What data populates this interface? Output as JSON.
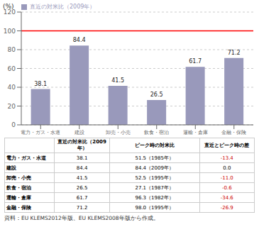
{
  "chart_data": {
    "type": "bar",
    "categories": [
      "電力・ガス・水道",
      "建設",
      "卸売・小売",
      "飲食・宿泊",
      "運輸・倉庫",
      "金融・保険"
    ],
    "series": [
      {
        "name": "直近の対米比（2009年）",
        "color": "#9999bb",
        "values": [
          38.1,
          84.4,
          41.5,
          26.5,
          61.7,
          71.2
        ]
      }
    ],
    "ylabel": "(%)",
    "ylim": [
      0,
      120
    ],
    "yticks": [
      0,
      20,
      40,
      60,
      80,
      100,
      120
    ],
    "grid": true,
    "legend": "upper left",
    "data_labels": true,
    "reference_line": {
      "value": 100,
      "color": "#ff0000"
    },
    "table": {
      "headers": [
        "直近の対米比（2009年）",
        "ピーク時の対米比",
        "直近とピーク時の差"
      ],
      "rows": [
        [
          "電力・ガス・水道",
          "38.1",
          "51.5（1985年）",
          "-13.4"
        ],
        [
          "建設",
          "84.4",
          "84.4（2009年）",
          "0.0"
        ],
        [
          "卸売・小売",
          "41.5",
          "52.5（1995年）",
          "-11.0"
        ],
        [
          "飲食・宿泊",
          "26.5",
          "27.1（1987年）",
          "-0.6"
        ],
        [
          "運輸・倉庫",
          "61.7",
          "96.3（1982年）",
          "-34.6"
        ],
        [
          "金融・保険",
          "71.2",
          "98.0（1995年）",
          "-26.9"
        ]
      ],
      "negative_color": "#cc0000"
    },
    "footer": "資料：EU KLEMS2012年版、EU KLEMS2008年版から作成。"
  }
}
